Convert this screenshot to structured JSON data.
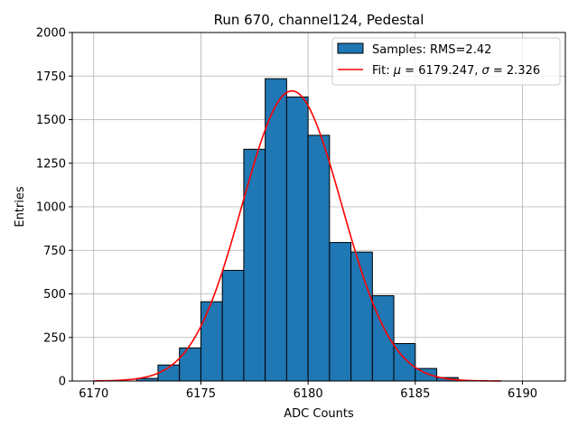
{
  "chart_data": {
    "type": "bar",
    "title": "Run 670, channel124, Pedestal",
    "xlabel": "ADC Counts",
    "ylabel": "Entries",
    "xlim": [
      6169,
      6192
    ],
    "ylim": [
      0,
      2000
    ],
    "x_ticks": [
      6170,
      6175,
      6180,
      6185,
      6190
    ],
    "y_ticks": [
      0,
      250,
      500,
      750,
      1000,
      1250,
      1500,
      1750,
      2000
    ],
    "grid": true,
    "legend_position": "top-right",
    "legend": {
      "samples_label": "Samples: RMS=2.42",
      "fit_label_prefix": "Fit: ",
      "fit_mu_symbol": "μ",
      "fit_mu_text": " = 6179.247, ",
      "fit_sigma_symbol": "σ",
      "fit_sigma_text": " = 2.326"
    },
    "histogram": {
      "name": "Samples",
      "bin_edges": [
        6172,
        6173,
        6174,
        6175,
        6176,
        6177,
        6178,
        6179,
        6180,
        6181,
        6182,
        6183,
        6184,
        6185,
        6186,
        6187
      ],
      "counts": [
        15,
        92,
        190,
        455,
        635,
        1330,
        1735,
        1630,
        1410,
        795,
        740,
        490,
        215,
        72,
        20
      ],
      "color": "#1f77b4",
      "edge_color": "#000000"
    },
    "fit": {
      "name": "Fit",
      "mu": 6179.247,
      "sigma": 2.326,
      "peak": 1665,
      "x_range": [
        6170,
        6189
      ],
      "color": "#ff0000"
    }
  }
}
